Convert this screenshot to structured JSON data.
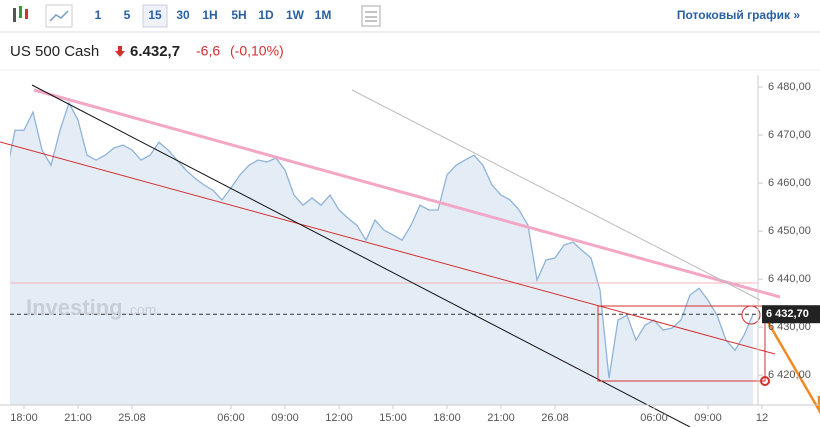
{
  "toolbar": {
    "intervals": [
      "1",
      "5",
      "15",
      "30",
      "1H",
      "5H",
      "1D",
      "1W",
      "1M"
    ],
    "selected": "15",
    "streaming_link": "Потоковый график »"
  },
  "quote": {
    "name": "US 500 Cash",
    "price": "6.432,7",
    "change": "-6,6",
    "change_pct": "(-0,10%)"
  },
  "chart_data": {
    "type": "area",
    "watermark": [
      "Investing",
      ".com"
    ],
    "categories": [
      null,
      null,
      "18:00",
      null,
      null,
      null,
      null,
      null,
      "21:00",
      null,
      null,
      null,
      null,
      null,
      "25.08",
      null,
      null,
      null,
      null,
      null,
      null,
      null,
      null,
      null,
      null,
      "06:00",
      null,
      null,
      null,
      null,
      null,
      "09:00",
      null,
      null,
      null,
      null,
      null,
      "12:00",
      null,
      null,
      null,
      null,
      null,
      "15:00",
      null,
      null,
      null,
      null,
      null,
      "18:00",
      null,
      null,
      null,
      null,
      null,
      "21:00",
      null,
      null,
      null,
      null,
      null,
      "26.08",
      null,
      null,
      null,
      null,
      null,
      null,
      null,
      null,
      null,
      null,
      "06:00",
      null,
      null,
      null,
      null,
      null,
      "09:00",
      null,
      null,
      null,
      null,
      null,
      "12"
    ],
    "values": [
      6461.7,
      6471.0,
      6471.0,
      6474.8,
      6466.9,
      6463.7,
      6471.0,
      6476.7,
      6473.1,
      6465.8,
      6464.8,
      6465.8,
      6467.3,
      6467.9,
      6466.9,
      6464.8,
      6465.8,
      6468.5,
      6466.9,
      6464.8,
      6462.7,
      6461.0,
      6459.6,
      6458.5,
      6456.5,
      6459.0,
      6461.7,
      6463.7,
      6464.8,
      6464.4,
      6465.2,
      6462.7,
      6457.5,
      6455.4,
      6456.9,
      6455.4,
      6457.5,
      6454.4,
      6452.7,
      6451.2,
      6448.1,
      6452.3,
      6450.2,
      6449.2,
      6448.1,
      6451.2,
      6455.4,
      6454.4,
      6454.4,
      6461.7,
      6463.7,
      6464.8,
      6465.8,
      6463.7,
      6459.6,
      6457.5,
      6456.5,
      6454.4,
      6451.2,
      6439.8,
      6444.0,
      6444.4,
      6447.1,
      6447.7,
      6446.0,
      6444.4,
      6437.7,
      6419.4,
      6431.5,
      6432.5,
      6427.3,
      6430.4,
      6431.5,
      6429.4,
      6429.8,
      6431.5,
      6436.7,
      6438.1,
      6435.6,
      6432.5,
      6427.3,
      6425.2,
      6428.3,
      6432.7,
      null
    ],
    "color": "#8fb3d9",
    "fill": "#e4edf6",
    "ylim": [
      6413.8,
      6482.5
    ],
    "yticks": [
      {
        "value": 6420,
        "label": "6 420,00"
      },
      {
        "value": 6430,
        "label": "6 430,00"
      },
      {
        "value": 6440,
        "label": "6 440,00"
      },
      {
        "value": 6450,
        "label": "6 450,00"
      },
      {
        "value": 6460,
        "label": "6 460,00"
      },
      {
        "value": 6470,
        "label": "6 470,00"
      },
      {
        "value": 6480,
        "label": "6 480,00"
      }
    ],
    "current_price": {
      "value": 6432.7,
      "label": "6 432,70"
    }
  }
}
